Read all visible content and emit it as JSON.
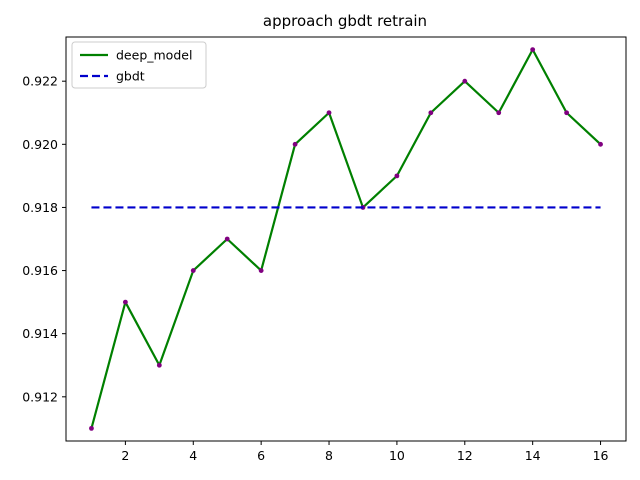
{
  "chart_data": {
    "type": "line",
    "title": "approach gbdt retrain",
    "xlabel": "",
    "ylabel": "",
    "x": [
      1,
      2,
      3,
      4,
      5,
      6,
      7,
      8,
      9,
      10,
      11,
      12,
      13,
      14,
      15,
      16
    ],
    "xlim": [
      0.25,
      16.75
    ],
    "ylim": [
      0.9106,
      0.9234
    ],
    "xticks": [
      2,
      4,
      6,
      8,
      10,
      12,
      14,
      16
    ],
    "yticks": [
      0.912,
      0.914,
      0.916,
      0.918,
      0.92,
      0.922
    ],
    "xtick_labels": [
      "2",
      "4",
      "6",
      "8",
      "10",
      "12",
      "14",
      "16"
    ],
    "ytick_labels": [
      "0.912",
      "0.914",
      "0.916",
      "0.918",
      "0.920",
      "0.922"
    ],
    "grid": false,
    "legend_position": "top-left",
    "series": [
      {
        "name": "deep_model",
        "color": "#008000",
        "style": "solid",
        "marker_color": "#800080",
        "values": [
          0.911,
          0.915,
          0.913,
          0.916,
          0.917,
          0.916,
          0.92,
          0.921,
          0.918,
          0.919,
          0.921,
          0.922,
          0.921,
          0.923,
          0.921,
          0.92
        ]
      },
      {
        "name": "gbdt",
        "color": "#0000cc",
        "style": "dashed",
        "values": [
          0.918,
          0.918,
          0.918,
          0.918,
          0.918,
          0.918,
          0.918,
          0.918,
          0.918,
          0.918,
          0.918,
          0.918,
          0.918,
          0.918,
          0.918,
          0.918
        ]
      }
    ]
  }
}
